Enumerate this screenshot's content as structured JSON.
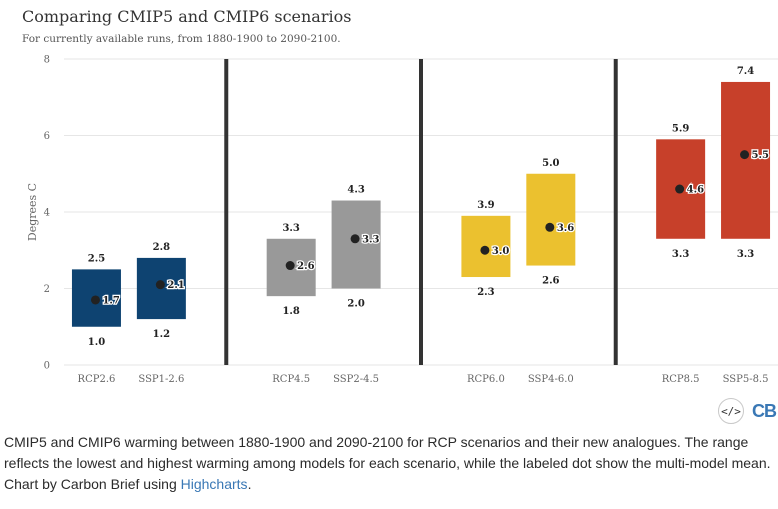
{
  "title": "Comparing CMIP5 and CMIP6 scenarios",
  "subtitle": "For currently available runs, from 1880-1900 to 2090-2100.",
  "caption": {
    "text": "CMIP5 and CMIP6 warming between 1880-1900 and 2090-2100 for RCP scenarios and their new analogues. The range reflects the lowest and highest warming among models for each scenario, while the labeled dot show the multi-model mean. Chart by Carbon Brief using ",
    "link": "Highcharts",
    "end": "."
  },
  "tools": {
    "embed_icon": "code-icon",
    "logo": "CB"
  },
  "chart_data": {
    "type": "range-bar",
    "title": "Comparing CMIP5 and CMIP6 scenarios",
    "subtitle": "For currently available runs, from 1880-1900 to 2090-2100.",
    "ylabel": "Degrees C",
    "ylim": [
      0,
      8
    ],
    "yticks": [
      0,
      2,
      4,
      6,
      8
    ],
    "grid": true,
    "categories": [
      "RCP2.6",
      "SSP1-2.6",
      "",
      "RCP4.5",
      "SSP2-4.5",
      "",
      "RCP6.0",
      "SSP4-6.0",
      "",
      "RCP8.5",
      "SSP5-8.5"
    ],
    "group_dividers_after": [
      2,
      5,
      8
    ],
    "bars": [
      {
        "category": "RCP2.6",
        "low": 1.0,
        "high": 2.5,
        "mean": 1.7,
        "low_label": "1.0",
        "high_label": "2.5",
        "mean_label": "1.7",
        "color": "#0e4371"
      },
      {
        "category": "SSP1-2.6",
        "low": 1.2,
        "high": 2.8,
        "mean": 2.1,
        "low_label": "1.2",
        "high_label": "2.8",
        "mean_label": "2.1",
        "color": "#0e4371"
      },
      {
        "category": "RCP4.5",
        "low": 1.8,
        "high": 3.3,
        "mean": 2.6,
        "low_label": "1.8",
        "high_label": "3.3",
        "mean_label": "2.6",
        "color": "#999999"
      },
      {
        "category": "SSP2-4.5",
        "low": 2.0,
        "high": 4.3,
        "mean": 3.3,
        "low_label": "2.0",
        "high_label": "4.3",
        "mean_label": "3.3",
        "color": "#999999"
      },
      {
        "category": "RCP6.0",
        "low": 2.3,
        "high": 3.9,
        "mean": 3.0,
        "low_label": "2.3",
        "high_label": "3.9",
        "mean_label": "3.0",
        "color": "#ebc12f"
      },
      {
        "category": "SSP4-6.0",
        "low": 2.6,
        "high": 5.0,
        "mean": 3.6,
        "low_label": "2.6",
        "high_label": "5.0",
        "mean_label": "3.6",
        "color": "#ebc12f"
      },
      {
        "category": "RCP8.5",
        "low": 3.3,
        "high": 5.9,
        "mean": 4.6,
        "low_label": "3.3",
        "high_label": "5.9",
        "mean_label": "4.6",
        "color": "#c7402a"
      },
      {
        "category": "SSP5-8.5",
        "low": 3.3,
        "high": 7.4,
        "mean": 5.5,
        "low_label": "3.3",
        "high_label": "7.4",
        "mean_label": "5.5",
        "color": "#c7402a"
      }
    ]
  }
}
